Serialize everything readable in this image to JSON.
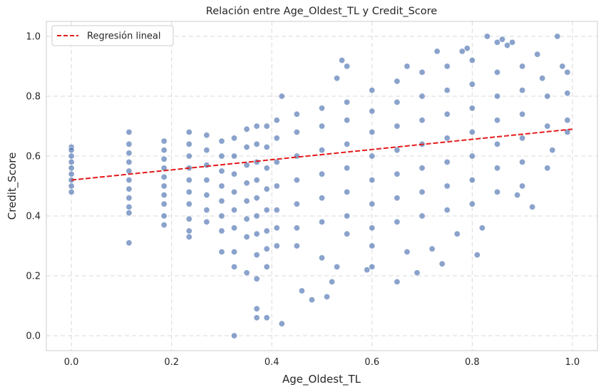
{
  "chart_data": {
    "type": "scatter",
    "title": "Relación entre Age_Oldest_TL y Credit_Score",
    "xlabel": "Age_Oldest_TL",
    "ylabel": "Credit_Score",
    "xlim": [
      -0.05,
      1.05
    ],
    "ylim": [
      -0.05,
      1.05
    ],
    "xticks": [
      "0.0",
      "0.2",
      "0.4",
      "0.6",
      "0.8",
      "1.0"
    ],
    "yticks": [
      "0.0",
      "0.2",
      "0.4",
      "0.6",
      "0.8",
      "1.0"
    ],
    "grid": true,
    "legend": {
      "position": "top-left",
      "entries": [
        "Regresión lineal"
      ]
    },
    "colors": {
      "points": "#4c72b0",
      "regression": "#e31a1c",
      "frame": "#cccccc"
    },
    "series": [
      {
        "type": "scatter",
        "points": [
          [
            0.0,
            0.63
          ],
          [
            0.0,
            0.62
          ],
          [
            0.0,
            0.6
          ],
          [
            0.0,
            0.58
          ],
          [
            0.0,
            0.56
          ],
          [
            0.0,
            0.54
          ],
          [
            0.0,
            0.52
          ],
          [
            0.0,
            0.5
          ],
          [
            0.0,
            0.48
          ],
          [
            0.115,
            0.68
          ],
          [
            0.115,
            0.64
          ],
          [
            0.115,
            0.61
          ],
          [
            0.115,
            0.58
          ],
          [
            0.115,
            0.55
          ],
          [
            0.115,
            0.52
          ],
          [
            0.115,
            0.49
          ],
          [
            0.115,
            0.46
          ],
          [
            0.115,
            0.43
          ],
          [
            0.115,
            0.41
          ],
          [
            0.115,
            0.31
          ],
          [
            0.185,
            0.65
          ],
          [
            0.185,
            0.62
          ],
          [
            0.185,
            0.59
          ],
          [
            0.185,
            0.56
          ],
          [
            0.185,
            0.53
          ],
          [
            0.185,
            0.5
          ],
          [
            0.185,
            0.47
          ],
          [
            0.185,
            0.44
          ],
          [
            0.185,
            0.4
          ],
          [
            0.185,
            0.37
          ],
          [
            0.235,
            0.68
          ],
          [
            0.235,
            0.64
          ],
          [
            0.235,
            0.6
          ],
          [
            0.235,
            0.56
          ],
          [
            0.235,
            0.52
          ],
          [
            0.235,
            0.48
          ],
          [
            0.235,
            0.44
          ],
          [
            0.235,
            0.39
          ],
          [
            0.235,
            0.35
          ],
          [
            0.235,
            0.33
          ],
          [
            0.27,
            0.67
          ],
          [
            0.27,
            0.62
          ],
          [
            0.27,
            0.57
          ],
          [
            0.27,
            0.52
          ],
          [
            0.27,
            0.47
          ],
          [
            0.27,
            0.42
          ],
          [
            0.27,
            0.38
          ],
          [
            0.3,
            0.65
          ],
          [
            0.3,
            0.6
          ],
          [
            0.3,
            0.55
          ],
          [
            0.3,
            0.5
          ],
          [
            0.3,
            0.45
          ],
          [
            0.3,
            0.4
          ],
          [
            0.3,
            0.35
          ],
          [
            0.3,
            0.28
          ],
          [
            0.325,
            0.66
          ],
          [
            0.325,
            0.6
          ],
          [
            0.325,
            0.54
          ],
          [
            0.325,
            0.48
          ],
          [
            0.325,
            0.42
          ],
          [
            0.325,
            0.36
          ],
          [
            0.325,
            0.28
          ],
          [
            0.325,
            0.23
          ],
          [
            0.325,
            0.0
          ],
          [
            0.35,
            0.69
          ],
          [
            0.35,
            0.63
          ],
          [
            0.35,
            0.57
          ],
          [
            0.35,
            0.51
          ],
          [
            0.35,
            0.45
          ],
          [
            0.35,
            0.39
          ],
          [
            0.35,
            0.33
          ],
          [
            0.35,
            0.21
          ],
          [
            0.37,
            0.7
          ],
          [
            0.37,
            0.64
          ],
          [
            0.37,
            0.58
          ],
          [
            0.37,
            0.52
          ],
          [
            0.37,
            0.46
          ],
          [
            0.37,
            0.4
          ],
          [
            0.37,
            0.34
          ],
          [
            0.37,
            0.27
          ],
          [
            0.37,
            0.19
          ],
          [
            0.37,
            0.09
          ],
          [
            0.37,
            0.06
          ],
          [
            0.39,
            0.7
          ],
          [
            0.39,
            0.63
          ],
          [
            0.39,
            0.56
          ],
          [
            0.39,
            0.49
          ],
          [
            0.39,
            0.42
          ],
          [
            0.39,
            0.35
          ],
          [
            0.39,
            0.29
          ],
          [
            0.39,
            0.23
          ],
          [
            0.39,
            0.06
          ],
          [
            0.41,
            0.72
          ],
          [
            0.41,
            0.66
          ],
          [
            0.41,
            0.58
          ],
          [
            0.41,
            0.5
          ],
          [
            0.41,
            0.42
          ],
          [
            0.41,
            0.36
          ],
          [
            0.41,
            0.3
          ],
          [
            0.42,
            0.8
          ],
          [
            0.42,
            0.04
          ],
          [
            0.45,
            0.74
          ],
          [
            0.45,
            0.68
          ],
          [
            0.45,
            0.6
          ],
          [
            0.45,
            0.52
          ],
          [
            0.45,
            0.44
          ],
          [
            0.45,
            0.36
          ],
          [
            0.45,
            0.3
          ],
          [
            0.46,
            0.15
          ],
          [
            0.48,
            0.12
          ],
          [
            0.5,
            0.26
          ],
          [
            0.5,
            0.76
          ],
          [
            0.5,
            0.7
          ],
          [
            0.5,
            0.62
          ],
          [
            0.5,
            0.54
          ],
          [
            0.5,
            0.46
          ],
          [
            0.5,
            0.38
          ],
          [
            0.51,
            0.13
          ],
          [
            0.52,
            0.18
          ],
          [
            0.53,
            0.23
          ],
          [
            0.53,
            0.86
          ],
          [
            0.54,
            0.92
          ],
          [
            0.55,
            0.9
          ],
          [
            0.55,
            0.78
          ],
          [
            0.55,
            0.72
          ],
          [
            0.55,
            0.64
          ],
          [
            0.55,
            0.56
          ],
          [
            0.55,
            0.48
          ],
          [
            0.55,
            0.4
          ],
          [
            0.55,
            0.34
          ],
          [
            0.6,
            0.82
          ],
          [
            0.6,
            0.75
          ],
          [
            0.6,
            0.68
          ],
          [
            0.6,
            0.6
          ],
          [
            0.6,
            0.52
          ],
          [
            0.6,
            0.44
          ],
          [
            0.6,
            0.36
          ],
          [
            0.6,
            0.3
          ],
          [
            0.59,
            0.22
          ],
          [
            0.6,
            0.23
          ],
          [
            0.65,
            0.85
          ],
          [
            0.65,
            0.78
          ],
          [
            0.65,
            0.7
          ],
          [
            0.65,
            0.62
          ],
          [
            0.65,
            0.54
          ],
          [
            0.65,
            0.46
          ],
          [
            0.65,
            0.38
          ],
          [
            0.65,
            0.18
          ],
          [
            0.67,
            0.9
          ],
          [
            0.67,
            0.28
          ],
          [
            0.7,
            0.88
          ],
          [
            0.7,
            0.8
          ],
          [
            0.7,
            0.72
          ],
          [
            0.7,
            0.64
          ],
          [
            0.7,
            0.56
          ],
          [
            0.7,
            0.48
          ],
          [
            0.7,
            0.4
          ],
          [
            0.69,
            0.21
          ],
          [
            0.72,
            0.29
          ],
          [
            0.73,
            0.95
          ],
          [
            0.75,
            0.9
          ],
          [
            0.75,
            0.82
          ],
          [
            0.75,
            0.74
          ],
          [
            0.75,
            0.66
          ],
          [
            0.75,
            0.58
          ],
          [
            0.75,
            0.5
          ],
          [
            0.75,
            0.42
          ],
          [
            0.74,
            0.24
          ],
          [
            0.77,
            0.34
          ],
          [
            0.78,
            0.95
          ],
          [
            0.79,
            0.96
          ],
          [
            0.8,
            0.92
          ],
          [
            0.8,
            0.84
          ],
          [
            0.8,
            0.76
          ],
          [
            0.8,
            0.68
          ],
          [
            0.8,
            0.6
          ],
          [
            0.8,
            0.52
          ],
          [
            0.8,
            0.44
          ],
          [
            0.81,
            0.27
          ],
          [
            0.82,
            0.36
          ],
          [
            0.83,
            1.0
          ],
          [
            0.85,
            0.98
          ],
          [
            0.86,
            0.99
          ],
          [
            0.85,
            0.88
          ],
          [
            0.85,
            0.8
          ],
          [
            0.85,
            0.72
          ],
          [
            0.85,
            0.64
          ],
          [
            0.85,
            0.56
          ],
          [
            0.85,
            0.48
          ],
          [
            0.87,
            0.97
          ],
          [
            0.88,
            0.98
          ],
          [
            0.9,
            0.9
          ],
          [
            0.9,
            0.82
          ],
          [
            0.9,
            0.74
          ],
          [
            0.9,
            0.66
          ],
          [
            0.9,
            0.58
          ],
          [
            0.9,
            0.5
          ],
          [
            0.89,
            0.47
          ],
          [
            0.92,
            0.43
          ],
          [
            0.93,
            0.94
          ],
          [
            0.94,
            0.86
          ],
          [
            0.95,
            0.8
          ],
          [
            0.95,
            0.7
          ],
          [
            0.96,
            0.62
          ],
          [
            0.95,
            0.56
          ],
          [
            0.97,
            1.0
          ],
          [
            0.98,
            0.9
          ],
          [
            0.99,
            0.88
          ],
          [
            0.99,
            0.81
          ],
          [
            0.99,
            0.72
          ],
          [
            0.99,
            0.68
          ]
        ]
      },
      {
        "type": "line",
        "name": "Regresión lineal",
        "x": [
          0.0,
          1.0
        ],
        "y": [
          0.52,
          0.69
        ]
      }
    ]
  }
}
